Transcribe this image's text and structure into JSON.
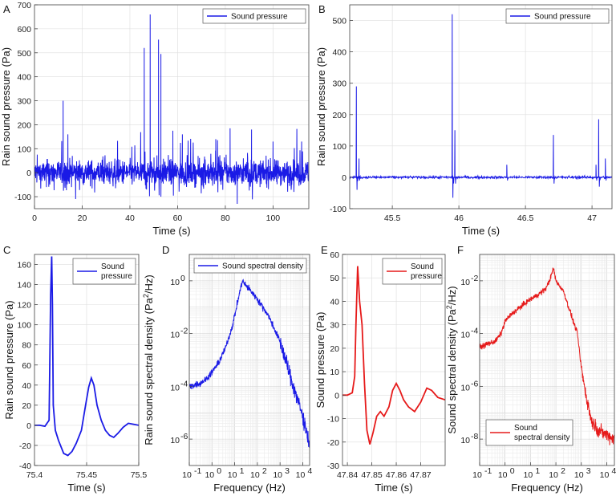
{
  "chart_data": [
    {
      "panel": "A",
      "type": "line",
      "xscale": "linear",
      "yscale": "linear",
      "xlim": [
        0,
        115
      ],
      "ylim": [
        -150,
        700
      ],
      "xticks": [
        0,
        20,
        40,
        60,
        80,
        100
      ],
      "yticks": [
        -100,
        0,
        100,
        200,
        300,
        400,
        500,
        600,
        700
      ],
      "xlabel": "Time (s)",
      "ylabel": "Rain sound pressure (Pa)",
      "legend": [
        "Sound pressure"
      ],
      "legend_position": "top-right",
      "color": "#1a1ae6",
      "grid": true,
      "series": [
        {
          "name": "Sound pressure",
          "signal": "noise",
          "x": [
            0,
            115
          ],
          "noise_amplitude": 25,
          "peaks": [
            [
              12,
              300
            ],
            [
              14,
              160
            ],
            [
              46,
              520
            ],
            [
              48.5,
              660
            ],
            [
              52,
              555
            ],
            [
              53,
              495
            ],
            [
              58,
              175
            ],
            [
              62,
              160
            ],
            [
              76,
              140
            ],
            [
              82,
              185
            ],
            [
              91,
              180
            ],
            [
              100,
              130
            ],
            [
              112,
              130
            ]
          ],
          "dips": [
            [
              5,
              -60
            ],
            [
              53,
              -100
            ],
            [
              85,
              -130
            ],
            [
              47,
              -70
            ]
          ]
        }
      ]
    },
    {
      "panel": "B",
      "type": "line",
      "xscale": "linear",
      "yscale": "linear",
      "xlim": [
        45.18,
        47.15
      ],
      "ylim": [
        -100,
        550
      ],
      "xticks": [
        45.5,
        46,
        46.5,
        47
      ],
      "yticks": [
        -100,
        0,
        100,
        200,
        300,
        400,
        500
      ],
      "xlabel": "Time (s)",
      "ylabel": "Rain sound pressure (Pa)",
      "legend": [
        "Sound pressure"
      ],
      "legend_position": "top-right",
      "color": "#1a1ae6",
      "grid": true,
      "series": [
        {
          "name": "Sound pressure",
          "signal": "pulses",
          "x": [
            45.18,
            47.15
          ],
          "noise_amplitude": 2,
          "pulses": [
            [
              45.23,
              290,
              -40
            ],
            [
              45.25,
              60,
              -10
            ],
            [
              45.95,
              520,
              -65
            ],
            [
              45.97,
              150,
              -20
            ],
            [
              46.36,
              40,
              -10
            ],
            [
              46.71,
              135,
              -20
            ],
            [
              47.05,
              185,
              -30
            ],
            [
              47.03,
              40,
              -10
            ],
            [
              47.1,
              60,
              -10
            ]
          ]
        }
      ]
    },
    {
      "panel": "C",
      "type": "line",
      "xscale": "linear",
      "yscale": "linear",
      "xlim": [
        75.4,
        75.5
      ],
      "ylim": [
        -40,
        170
      ],
      "xticks": [
        75.4,
        75.45,
        75.5
      ],
      "yticks": [
        -40,
        -20,
        0,
        20,
        40,
        60,
        80,
        100,
        120,
        140,
        160
      ],
      "xlabel": "Time (s)",
      "ylabel": "Rain sound pressure (Pa)",
      "legend": [
        "Sound",
        "pressure"
      ],
      "legend_position": "top-right",
      "color": "#1a1ae6",
      "grid": true,
      "series": [
        {
          "name": "Sound pressure",
          "signal": "points",
          "points": [
            [
              75.4,
              0
            ],
            [
              75.405,
              0
            ],
            [
              75.41,
              -1
            ],
            [
              75.412,
              2
            ],
            [
              75.414,
              5
            ],
            [
              75.4155,
              130
            ],
            [
              75.4165,
              168
            ],
            [
              75.4172,
              120
            ],
            [
              75.418,
              20
            ],
            [
              75.42,
              -5
            ],
            [
              75.423,
              -15
            ],
            [
              75.428,
              -28
            ],
            [
              75.432,
              -30
            ],
            [
              75.436,
              -26
            ],
            [
              75.44,
              -18
            ],
            [
              75.445,
              -5
            ],
            [
              75.449,
              20
            ],
            [
              75.452,
              38
            ],
            [
              75.4545,
              47
            ],
            [
              75.457,
              40
            ],
            [
              75.46,
              20
            ],
            [
              75.464,
              5
            ],
            [
              75.468,
              -5
            ],
            [
              75.472,
              -10
            ],
            [
              75.476,
              -12
            ],
            [
              75.48,
              -8
            ],
            [
              75.485,
              -2
            ],
            [
              75.49,
              2
            ],
            [
              75.495,
              1
            ],
            [
              75.5,
              0
            ]
          ]
        }
      ]
    },
    {
      "panel": "D",
      "type": "line",
      "xscale": "log",
      "yscale": "log",
      "xlim": [
        0.1,
        20000
      ],
      "ylim": [
        1e-07,
        10
      ],
      "xticks": [
        0.1,
        1,
        10,
        100,
        1000,
        10000
      ],
      "xticklabels": [
        "10",
        "10",
        "10",
        "10",
        "10",
        "10"
      ],
      "xtickexp": [
        "-1",
        "0",
        "1",
        "2",
        "3",
        "4"
      ],
      "yticks": [
        1e-06,
        0.0001,
        0.01,
        1
      ],
      "yticklabels": [
        "10",
        "10",
        "10",
        "10"
      ],
      "ytickexp": [
        "-6",
        "-4",
        "-2",
        "0"
      ],
      "xlabel": "Frequency (Hz)",
      "ylabel": "Rain sound spectral density (Pa²/Hz)",
      "ylabel_main": "Rain sound spectral density (Pa",
      "ylabel_sup": "2",
      "ylabel_end": "/Hz)",
      "legend": [
        "Sound spectral density"
      ],
      "legend_position": "top-right",
      "color": "#1a1ae6",
      "grid": true,
      "series": [
        {
          "name": "Sound spectral density",
          "signal": "spectrum",
          "noise_amplitude": 0.06,
          "points": [
            [
              0.1,
              0.0001
            ],
            [
              0.3,
              0.00013
            ],
            [
              0.6,
              0.0002
            ],
            [
              1,
              0.00035
            ],
            [
              2,
              0.0008
            ],
            [
              4,
              0.003
            ],
            [
              8,
              0.02
            ],
            [
              12,
              0.1
            ],
            [
              18,
              0.5
            ],
            [
              22,
              1.0
            ],
            [
              30,
              0.7
            ],
            [
              60,
              0.35
            ],
            [
              100,
              0.2
            ],
            [
              300,
              0.05
            ],
            [
              1000,
              0.005
            ],
            [
              3000,
              0.0002
            ],
            [
              7000,
              2e-05
            ],
            [
              12000,
              4e-06
            ],
            [
              20000,
              6e-07
            ]
          ]
        }
      ]
    },
    {
      "panel": "E",
      "type": "line",
      "xscale": "linear",
      "yscale": "linear",
      "xlim": [
        47.838,
        47.88
      ],
      "ylim": [
        -30,
        60
      ],
      "xticks": [
        47.84,
        47.85,
        47.86,
        47.87
      ],
      "yticks": [
        -30,
        -20,
        -10,
        0,
        10,
        20,
        30,
        40,
        50,
        60
      ],
      "xlabel": "Time (s)",
      "ylabel": "Sound pressure (Pa)",
      "legend": [
        "Sound",
        "pressure"
      ],
      "legend_position": "top-right",
      "color": "#e61a1a",
      "grid": true,
      "series": [
        {
          "name": "Sound pressure",
          "signal": "points",
          "points": [
            [
              47.838,
              0
            ],
            [
              47.84,
              0
            ],
            [
              47.842,
              1
            ],
            [
              47.843,
              8
            ],
            [
              47.8435,
              30
            ],
            [
              47.8442,
              55
            ],
            [
              47.845,
              40
            ],
            [
              47.846,
              30
            ],
            [
              47.847,
              5
            ],
            [
              47.848,
              -15
            ],
            [
              47.8492,
              -21
            ],
            [
              47.8505,
              -16
            ],
            [
              47.852,
              -9
            ],
            [
              47.8535,
              -7
            ],
            [
              47.855,
              -9
            ],
            [
              47.857,
              -5
            ],
            [
              47.8585,
              2
            ],
            [
              47.86,
              5
            ],
            [
              47.8615,
              2
            ],
            [
              47.863,
              -2
            ],
            [
              47.865,
              -5
            ],
            [
              47.8675,
              -7
            ],
            [
              47.87,
              -3
            ],
            [
              47.8725,
              3
            ],
            [
              47.8745,
              2
            ],
            [
              47.877,
              -1
            ],
            [
              47.88,
              -2
            ]
          ]
        }
      ]
    },
    {
      "panel": "F",
      "type": "line",
      "xscale": "log",
      "yscale": "log",
      "xlim": [
        0.1,
        20000
      ],
      "ylim": [
        1e-09,
        0.1
      ],
      "xticks": [
        0.1,
        1,
        10,
        100,
        1000,
        10000
      ],
      "xticklabels": [
        "10",
        "10",
        "10",
        "10",
        "10",
        "10"
      ],
      "xtickexp": [
        "-1",
        "0",
        "1",
        "2",
        "3",
        "4"
      ],
      "yticks": [
        1e-08,
        1e-06,
        0.0001,
        0.01
      ],
      "yticklabels": [
        "10",
        "10",
        "10",
        "10"
      ],
      "ytickexp": [
        "-8",
        "-6",
        "-4",
        "-2"
      ],
      "xlabel": "Frequency (Hz)",
      "ylabel": "Sound spectral density (Pa²/Hz)",
      "ylabel_main": "Sound spectral density (Pa",
      "ylabel_sup": "2",
      "ylabel_end": "/Hz)",
      "legend": [
        "Sound",
        "spectral density"
      ],
      "legend_position": "bottom-left",
      "color": "#e61a1a",
      "grid": true,
      "series": [
        {
          "name": "Sound spectral density",
          "signal": "spectrum",
          "noise_amplitude": 0.05,
          "points": [
            [
              0.1,
              3e-05
            ],
            [
              0.2,
              4e-05
            ],
            [
              0.4,
              5e-05
            ],
            [
              0.7,
              0.0001
            ],
            [
              1,
              0.0003
            ],
            [
              2,
              0.0006
            ],
            [
              5,
              0.0012
            ],
            [
              10,
              0.002
            ],
            [
              20,
              0.003
            ],
            [
              40,
              0.005
            ],
            [
              60,
              0.012
            ],
            [
              80,
              0.03
            ],
            [
              100,
              0.01
            ],
            [
              200,
              0.004
            ],
            [
              400,
              0.0005
            ],
            [
              700,
              0.0001
            ],
            [
              1000,
              5e-06
            ],
            [
              1500,
              5e-07
            ],
            [
              2500,
              5e-08
            ],
            [
              5000,
              2e-08
            ],
            [
              10000,
              1.5e-08
            ],
            [
              20000,
              1e-08
            ]
          ]
        }
      ]
    }
  ],
  "panels": {
    "A": {
      "letter": "A"
    },
    "B": {
      "letter": "B"
    },
    "C": {
      "letter": "C"
    },
    "D": {
      "letter": "D"
    },
    "E": {
      "letter": "E"
    },
    "F": {
      "letter": "F"
    }
  }
}
